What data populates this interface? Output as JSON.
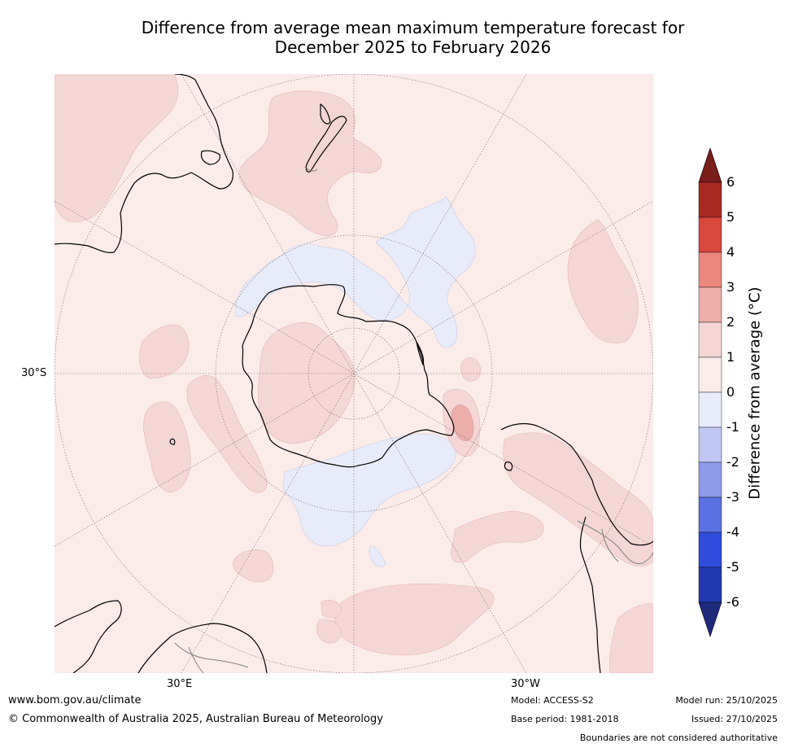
{
  "title": {
    "line1": "Difference from average mean maximum temperature forecast for",
    "line2": "December 2025 to February 2026"
  },
  "map": {
    "projection": "south-polar-stereographic",
    "latitude_label": "30°S",
    "longitude_labels": [
      "30°E",
      "30°W"
    ],
    "colors": {
      "ocean_background": "#fbebe9",
      "warm_0_1": "#fbebe9",
      "warm_1_2": "#f4d6d5",
      "warm_2_3": "#ecaea9",
      "cool_0_-1": "#e8ebfa",
      "coastline": "#000000",
      "boundary": "#808080"
    }
  },
  "colorbar": {
    "title": "Difference from average (°C)",
    "tick_labels": [
      "6",
      "5",
      "4",
      "3",
      "2",
      "1",
      "0",
      "-1",
      "-2",
      "-3",
      "-4",
      "-5",
      "-6"
    ],
    "bins": [
      {
        "range": ">6",
        "color": "#7a1e18"
      },
      {
        "range": "5 to 6",
        "color": "#a92a22"
      },
      {
        "range": "4 to 5",
        "color": "#d9473d"
      },
      {
        "range": "3 to 4",
        "color": "#ea877e"
      },
      {
        "range": "2 to 3",
        "color": "#ecaea9"
      },
      {
        "range": "1 to 2",
        "color": "#f4d6d5"
      },
      {
        "range": "0 to 1",
        "color": "#fbebe9"
      },
      {
        "range": "-1 to 0",
        "color": "#e8ebfa"
      },
      {
        "range": "-2 to -1",
        "color": "#c0c7f2"
      },
      {
        "range": "-3 to -2",
        "color": "#8d9bea"
      },
      {
        "range": "-4 to -3",
        "color": "#5b70e2"
      },
      {
        "range": "-5 to -4",
        "color": "#304cdc"
      },
      {
        "range": "-6 to -5",
        "color": "#2339b0"
      },
      {
        "range": "<-6",
        "color": "#1e2b7c"
      }
    ]
  },
  "footer": {
    "website": "www.bom.gov.au/climate",
    "copyright": "© Commonwealth of Australia 2025, Australian Bureau of Meteorology",
    "model": "Model: ACCESS-S2",
    "base_period": "Base period: 1981-2018",
    "model_run": "Model run: 25/10/2025",
    "issued": "Issued: 27/10/2025",
    "disclaimer": "Boundaries are not considered authoritative"
  }
}
